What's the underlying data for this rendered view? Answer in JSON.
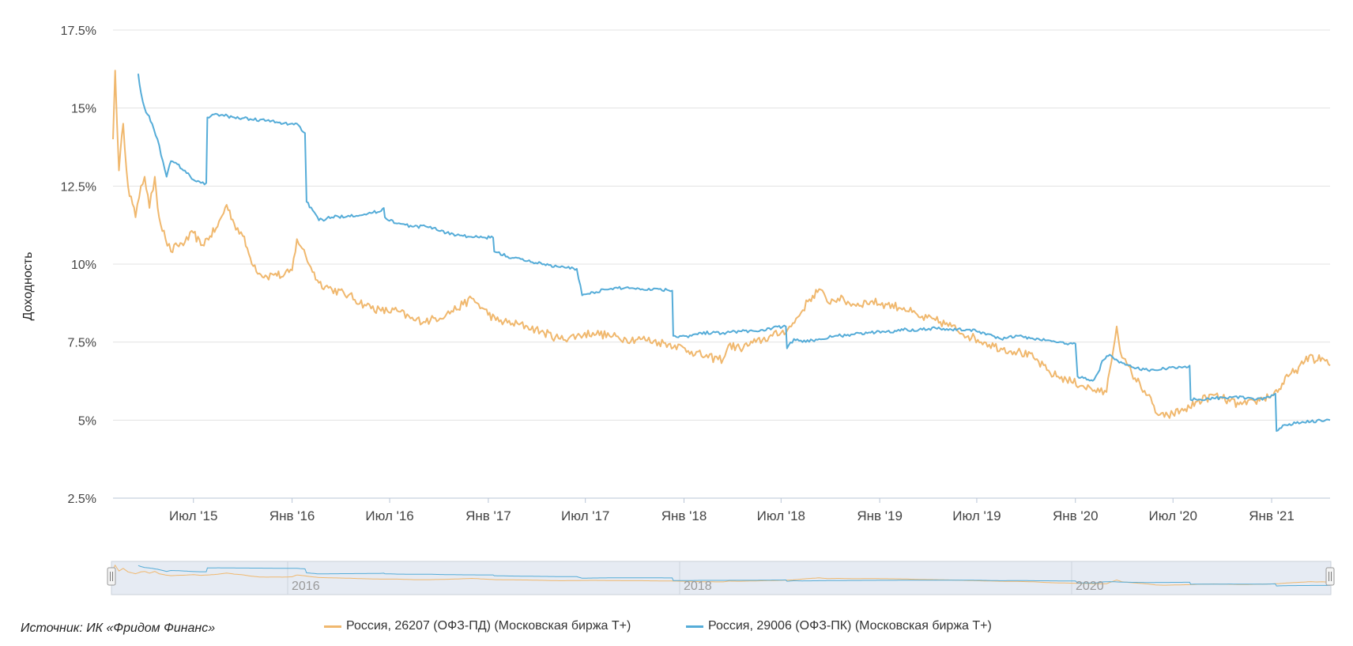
{
  "source_text": "Источник: ИК «Фридом Финанс»",
  "navigator": {
    "labels": [
      "2016",
      "2018",
      "2020"
    ]
  },
  "chart_data": {
    "type": "line",
    "ylabel": "Доходность",
    "ylim": [
      2.5,
      17.5
    ],
    "y_ticks": [
      "17.5%",
      "15%",
      "12.5%",
      "10%",
      "7.5%",
      "5%",
      "2.5%"
    ],
    "x_ticks": [
      "Июл '15",
      "Янв '16",
      "Июл '16",
      "Янв '17",
      "Июл '17",
      "Янв '18",
      "Июл '18",
      "Янв '19",
      "Июл '19",
      "Янв '20",
      "Июл '20",
      "Янв '21"
    ],
    "x_range": [
      "2015-02-01",
      "2021-04-20"
    ],
    "grid": true,
    "legend_position": "bottom",
    "series": [
      {
        "name": "Россия, 26207 (ОФЗ-ПД) (Московская биржа T+)",
        "color": "#f0b86e",
        "points": [
          [
            "2015-02-01",
            14.0
          ],
          [
            "2015-02-05",
            16.2
          ],
          [
            "2015-02-12",
            13.0
          ],
          [
            "2015-02-20",
            14.5
          ],
          [
            "2015-03-01",
            12.5
          ],
          [
            "2015-03-15",
            11.5
          ],
          [
            "2015-03-25",
            12.5
          ],
          [
            "2015-04-01",
            12.8
          ],
          [
            "2015-04-10",
            11.8
          ],
          [
            "2015-04-20",
            12.8
          ],
          [
            "2015-04-28",
            11.5
          ],
          [
            "2015-05-10",
            10.8
          ],
          [
            "2015-05-20",
            10.4
          ],
          [
            "2015-06-01",
            10.6
          ],
          [
            "2015-06-15",
            10.7
          ],
          [
            "2015-07-01",
            11.0
          ],
          [
            "2015-07-15",
            10.6
          ],
          [
            "2015-08-01",
            10.9
          ],
          [
            "2015-08-15",
            11.2
          ],
          [
            "2015-09-01",
            11.9
          ],
          [
            "2015-09-15",
            11.3
          ],
          [
            "2015-10-01",
            10.9
          ],
          [
            "2015-10-15",
            10.2
          ],
          [
            "2015-11-01",
            9.7
          ],
          [
            "2015-11-15",
            9.6
          ],
          [
            "2015-12-01",
            9.7
          ],
          [
            "2015-12-15",
            9.6
          ],
          [
            "2016-01-01",
            9.8
          ],
          [
            "2016-01-10",
            10.8
          ],
          [
            "2016-01-20",
            10.5
          ],
          [
            "2016-02-05",
            9.9
          ],
          [
            "2016-02-20",
            9.4
          ],
          [
            "2016-03-15",
            9.2
          ],
          [
            "2016-04-15",
            9.0
          ],
          [
            "2016-05-15",
            8.7
          ],
          [
            "2016-06-15",
            8.5
          ],
          [
            "2016-07-15",
            8.5
          ],
          [
            "2016-08-15",
            8.2
          ],
          [
            "2016-09-15",
            8.2
          ],
          [
            "2016-10-15",
            8.4
          ],
          [
            "2016-11-15",
            8.7
          ],
          [
            "2016-12-01",
            8.9
          ],
          [
            "2016-12-20",
            8.6
          ],
          [
            "2017-01-15",
            8.2
          ],
          [
            "2017-02-15",
            8.1
          ],
          [
            "2017-03-15",
            8.0
          ],
          [
            "2017-04-15",
            7.8
          ],
          [
            "2017-05-15",
            7.6
          ],
          [
            "2017-06-15",
            7.7
          ],
          [
            "2017-07-15",
            7.8
          ],
          [
            "2017-08-15",
            7.7
          ],
          [
            "2017-09-15",
            7.6
          ],
          [
            "2017-10-15",
            7.6
          ],
          [
            "2017-11-15",
            7.5
          ],
          [
            "2017-12-15",
            7.4
          ],
          [
            "2018-01-15",
            7.2
          ],
          [
            "2018-02-15",
            7.0
          ],
          [
            "2018-03-15",
            6.95
          ],
          [
            "2018-03-25",
            7.4
          ],
          [
            "2018-04-15",
            7.3
          ],
          [
            "2018-05-15",
            7.5
          ],
          [
            "2018-06-15",
            7.7
          ],
          [
            "2018-07-01",
            7.8
          ],
          [
            "2018-07-20",
            8.0
          ],
          [
            "2018-08-01",
            8.3
          ],
          [
            "2018-08-20",
            8.8
          ],
          [
            "2018-09-10",
            9.2
          ],
          [
            "2018-09-25",
            8.8
          ],
          [
            "2018-10-15",
            8.9
          ],
          [
            "2018-11-15",
            8.7
          ],
          [
            "2018-12-15",
            8.8
          ],
          [
            "2019-01-15",
            8.7
          ],
          [
            "2019-02-15",
            8.6
          ],
          [
            "2019-03-15",
            8.3
          ],
          [
            "2019-04-15",
            8.2
          ],
          [
            "2019-05-15",
            8.0
          ],
          [
            "2019-06-15",
            7.7
          ],
          [
            "2019-07-15",
            7.5
          ],
          [
            "2019-08-15",
            7.3
          ],
          [
            "2019-09-15",
            7.2
          ],
          [
            "2019-10-15",
            7.0
          ],
          [
            "2019-11-15",
            6.5
          ],
          [
            "2019-12-15",
            6.3
          ],
          [
            "2020-01-15",
            6.1
          ],
          [
            "2020-02-15",
            5.9
          ],
          [
            "2020-02-28",
            5.9
          ],
          [
            "2020-03-05",
            6.6
          ],
          [
            "2020-03-18",
            8.0
          ],
          [
            "2020-03-28",
            7.0
          ],
          [
            "2020-04-15",
            6.5
          ],
          [
            "2020-05-15",
            5.8
          ],
          [
            "2020-06-01",
            5.2
          ],
          [
            "2020-06-15",
            5.1
          ],
          [
            "2020-07-01",
            5.2
          ],
          [
            "2020-07-15",
            5.3
          ],
          [
            "2020-08-01",
            5.4
          ],
          [
            "2020-08-15",
            5.6
          ],
          [
            "2020-09-01",
            5.7
          ],
          [
            "2020-09-15",
            5.8
          ],
          [
            "2020-10-01",
            5.7
          ],
          [
            "2020-10-15",
            5.6
          ],
          [
            "2020-11-01",
            5.5
          ],
          [
            "2020-11-15",
            5.5
          ],
          [
            "2020-12-01",
            5.6
          ],
          [
            "2020-12-15",
            5.7
          ],
          [
            "2021-01-01",
            5.8
          ],
          [
            "2021-01-15",
            6.0
          ],
          [
            "2021-02-01",
            6.4
          ],
          [
            "2021-02-15",
            6.6
          ],
          [
            "2021-03-01",
            6.8
          ],
          [
            "2021-03-15",
            7.1
          ],
          [
            "2021-03-25",
            6.9
          ],
          [
            "2021-04-05",
            7.0
          ],
          [
            "2021-04-20",
            6.75
          ]
        ]
      },
      {
        "name": "Россия, 29006 (ОФЗ-ПК) (Московская биржа T+)",
        "color": "#55acd8",
        "points": [
          [
            "2015-03-20",
            16.1
          ],
          [
            "2015-03-25",
            15.5
          ],
          [
            "2015-04-01",
            15.0
          ],
          [
            "2015-04-15",
            14.5
          ],
          [
            "2015-04-25",
            14.0
          ],
          [
            "2015-05-05",
            13.3
          ],
          [
            "2015-05-12",
            12.8
          ],
          [
            "2015-05-20",
            13.3
          ],
          [
            "2015-06-01",
            13.2
          ],
          [
            "2015-06-15",
            13.0
          ],
          [
            "2015-07-01",
            12.7
          ],
          [
            "2015-07-15",
            12.6
          ],
          [
            "2015-07-25",
            12.6
          ],
          [
            "2015-07-27",
            14.7
          ],
          [
            "2015-08-15",
            14.8
          ],
          [
            "2015-09-15",
            14.7
          ],
          [
            "2015-10-15",
            14.65
          ],
          [
            "2015-11-15",
            14.6
          ],
          [
            "2015-12-15",
            14.5
          ],
          [
            "2016-01-10",
            14.5
          ],
          [
            "2016-01-25",
            14.2
          ],
          [
            "2016-01-28",
            12.0
          ],
          [
            "2016-02-20",
            11.4
          ],
          [
            "2016-03-15",
            11.5
          ],
          [
            "2016-04-15",
            11.55
          ],
          [
            "2016-05-15",
            11.6
          ],
          [
            "2016-06-15",
            11.7
          ],
          [
            "2016-06-20",
            11.8
          ],
          [
            "2016-06-22",
            11.5
          ],
          [
            "2016-07-15",
            11.3
          ],
          [
            "2016-08-15",
            11.2
          ],
          [
            "2016-09-15",
            11.2
          ],
          [
            "2016-10-15",
            11.0
          ],
          [
            "2016-11-15",
            10.9
          ],
          [
            "2016-12-15",
            10.85
          ],
          [
            "2017-01-10",
            10.85
          ],
          [
            "2017-01-12",
            10.4
          ],
          [
            "2017-02-15",
            10.2
          ],
          [
            "2017-03-15",
            10.1
          ],
          [
            "2017-04-15",
            10.0
          ],
          [
            "2017-05-15",
            9.9
          ],
          [
            "2017-06-15",
            9.85
          ],
          [
            "2017-06-25",
            9.0
          ],
          [
            "2017-07-15",
            9.1
          ],
          [
            "2017-08-15",
            9.2
          ],
          [
            "2017-09-15",
            9.25
          ],
          [
            "2017-10-15",
            9.2
          ],
          [
            "2017-11-15",
            9.2
          ],
          [
            "2017-12-10",
            9.15
          ],
          [
            "2017-12-12",
            7.7
          ],
          [
            "2018-01-15",
            7.7
          ],
          [
            "2018-02-01",
            7.8
          ],
          [
            "2018-03-15",
            7.8
          ],
          [
            "2018-04-15",
            7.85
          ],
          [
            "2018-05-15",
            7.85
          ],
          [
            "2018-06-15",
            7.95
          ],
          [
            "2018-07-10",
            8.0
          ],
          [
            "2018-07-12",
            7.3
          ],
          [
            "2018-07-25",
            7.6
          ],
          [
            "2018-08-10",
            7.5
          ],
          [
            "2018-09-10",
            7.6
          ],
          [
            "2018-10-15",
            7.7
          ],
          [
            "2018-11-15",
            7.75
          ],
          [
            "2018-12-15",
            7.8
          ],
          [
            "2019-01-15",
            7.85
          ],
          [
            "2019-02-01",
            7.85
          ],
          [
            "2019-02-05",
            7.9
          ],
          [
            "2019-03-15",
            7.9
          ],
          [
            "2019-04-15",
            7.95
          ],
          [
            "2019-05-15",
            7.9
          ],
          [
            "2019-06-15",
            7.9
          ],
          [
            "2019-07-15",
            7.8
          ],
          [
            "2019-08-15",
            7.6
          ],
          [
            "2019-09-15",
            7.7
          ],
          [
            "2019-10-15",
            7.6
          ],
          [
            "2019-11-15",
            7.55
          ],
          [
            "2019-12-15",
            7.45
          ],
          [
            "2020-01-01",
            7.45
          ],
          [
            "2020-01-05",
            6.4
          ],
          [
            "2020-01-25",
            6.3
          ],
          [
            "2020-02-05",
            6.3
          ],
          [
            "2020-02-15",
            6.6
          ],
          [
            "2020-02-20",
            6.9
          ],
          [
            "2020-03-05",
            7.1
          ],
          [
            "2020-03-20",
            6.9
          ],
          [
            "2020-04-15",
            6.7
          ],
          [
            "2020-05-15",
            6.6
          ],
          [
            "2020-06-15",
            6.65
          ],
          [
            "2020-07-15",
            6.7
          ],
          [
            "2020-08-01",
            6.75
          ],
          [
            "2020-08-03",
            5.65
          ],
          [
            "2020-09-15",
            5.7
          ],
          [
            "2020-10-15",
            5.75
          ],
          [
            "2020-11-15",
            5.7
          ],
          [
            "2020-12-15",
            5.65
          ],
          [
            "2021-01-01",
            5.8
          ],
          [
            "2021-01-08",
            5.85
          ],
          [
            "2021-01-10",
            4.65
          ],
          [
            "2021-01-25",
            4.85
          ],
          [
            "2021-02-15",
            4.9
          ],
          [
            "2021-03-15",
            4.95
          ],
          [
            "2021-04-20",
            5.0
          ]
        ]
      }
    ]
  }
}
